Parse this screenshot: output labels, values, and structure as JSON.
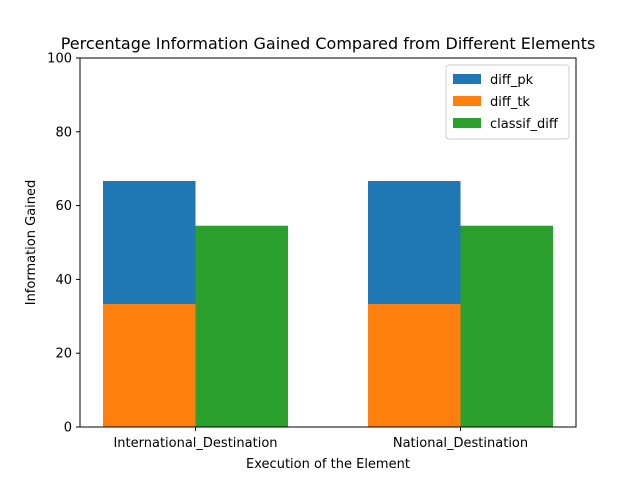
{
  "chart_data": {
    "type": "bar",
    "title": "Percentage Information Gained Compared from Different Elements",
    "xlabel": "Execution of the Element",
    "ylabel": "Information Gained",
    "categories": [
      "International_Destination",
      "National_Destination"
    ],
    "ylim": [
      0,
      100
    ],
    "yticks": [
      0,
      20,
      40,
      60,
      80,
      100
    ],
    "grid": false,
    "legend_position": "top-right",
    "series": [
      {
        "name": "diff_pk",
        "values": [
          66.67,
          66.67
        ],
        "color": "#1f77b4",
        "slot": "left",
        "stacked_on": "diff_tk"
      },
      {
        "name": "diff_tk",
        "values": [
          33.33,
          33.33
        ],
        "color": "#ff7f0e",
        "slot": "left"
      },
      {
        "name": "classif_diff",
        "values": [
          54.55,
          54.55
        ],
        "color": "#2ca02c",
        "slot": "right"
      }
    ]
  }
}
